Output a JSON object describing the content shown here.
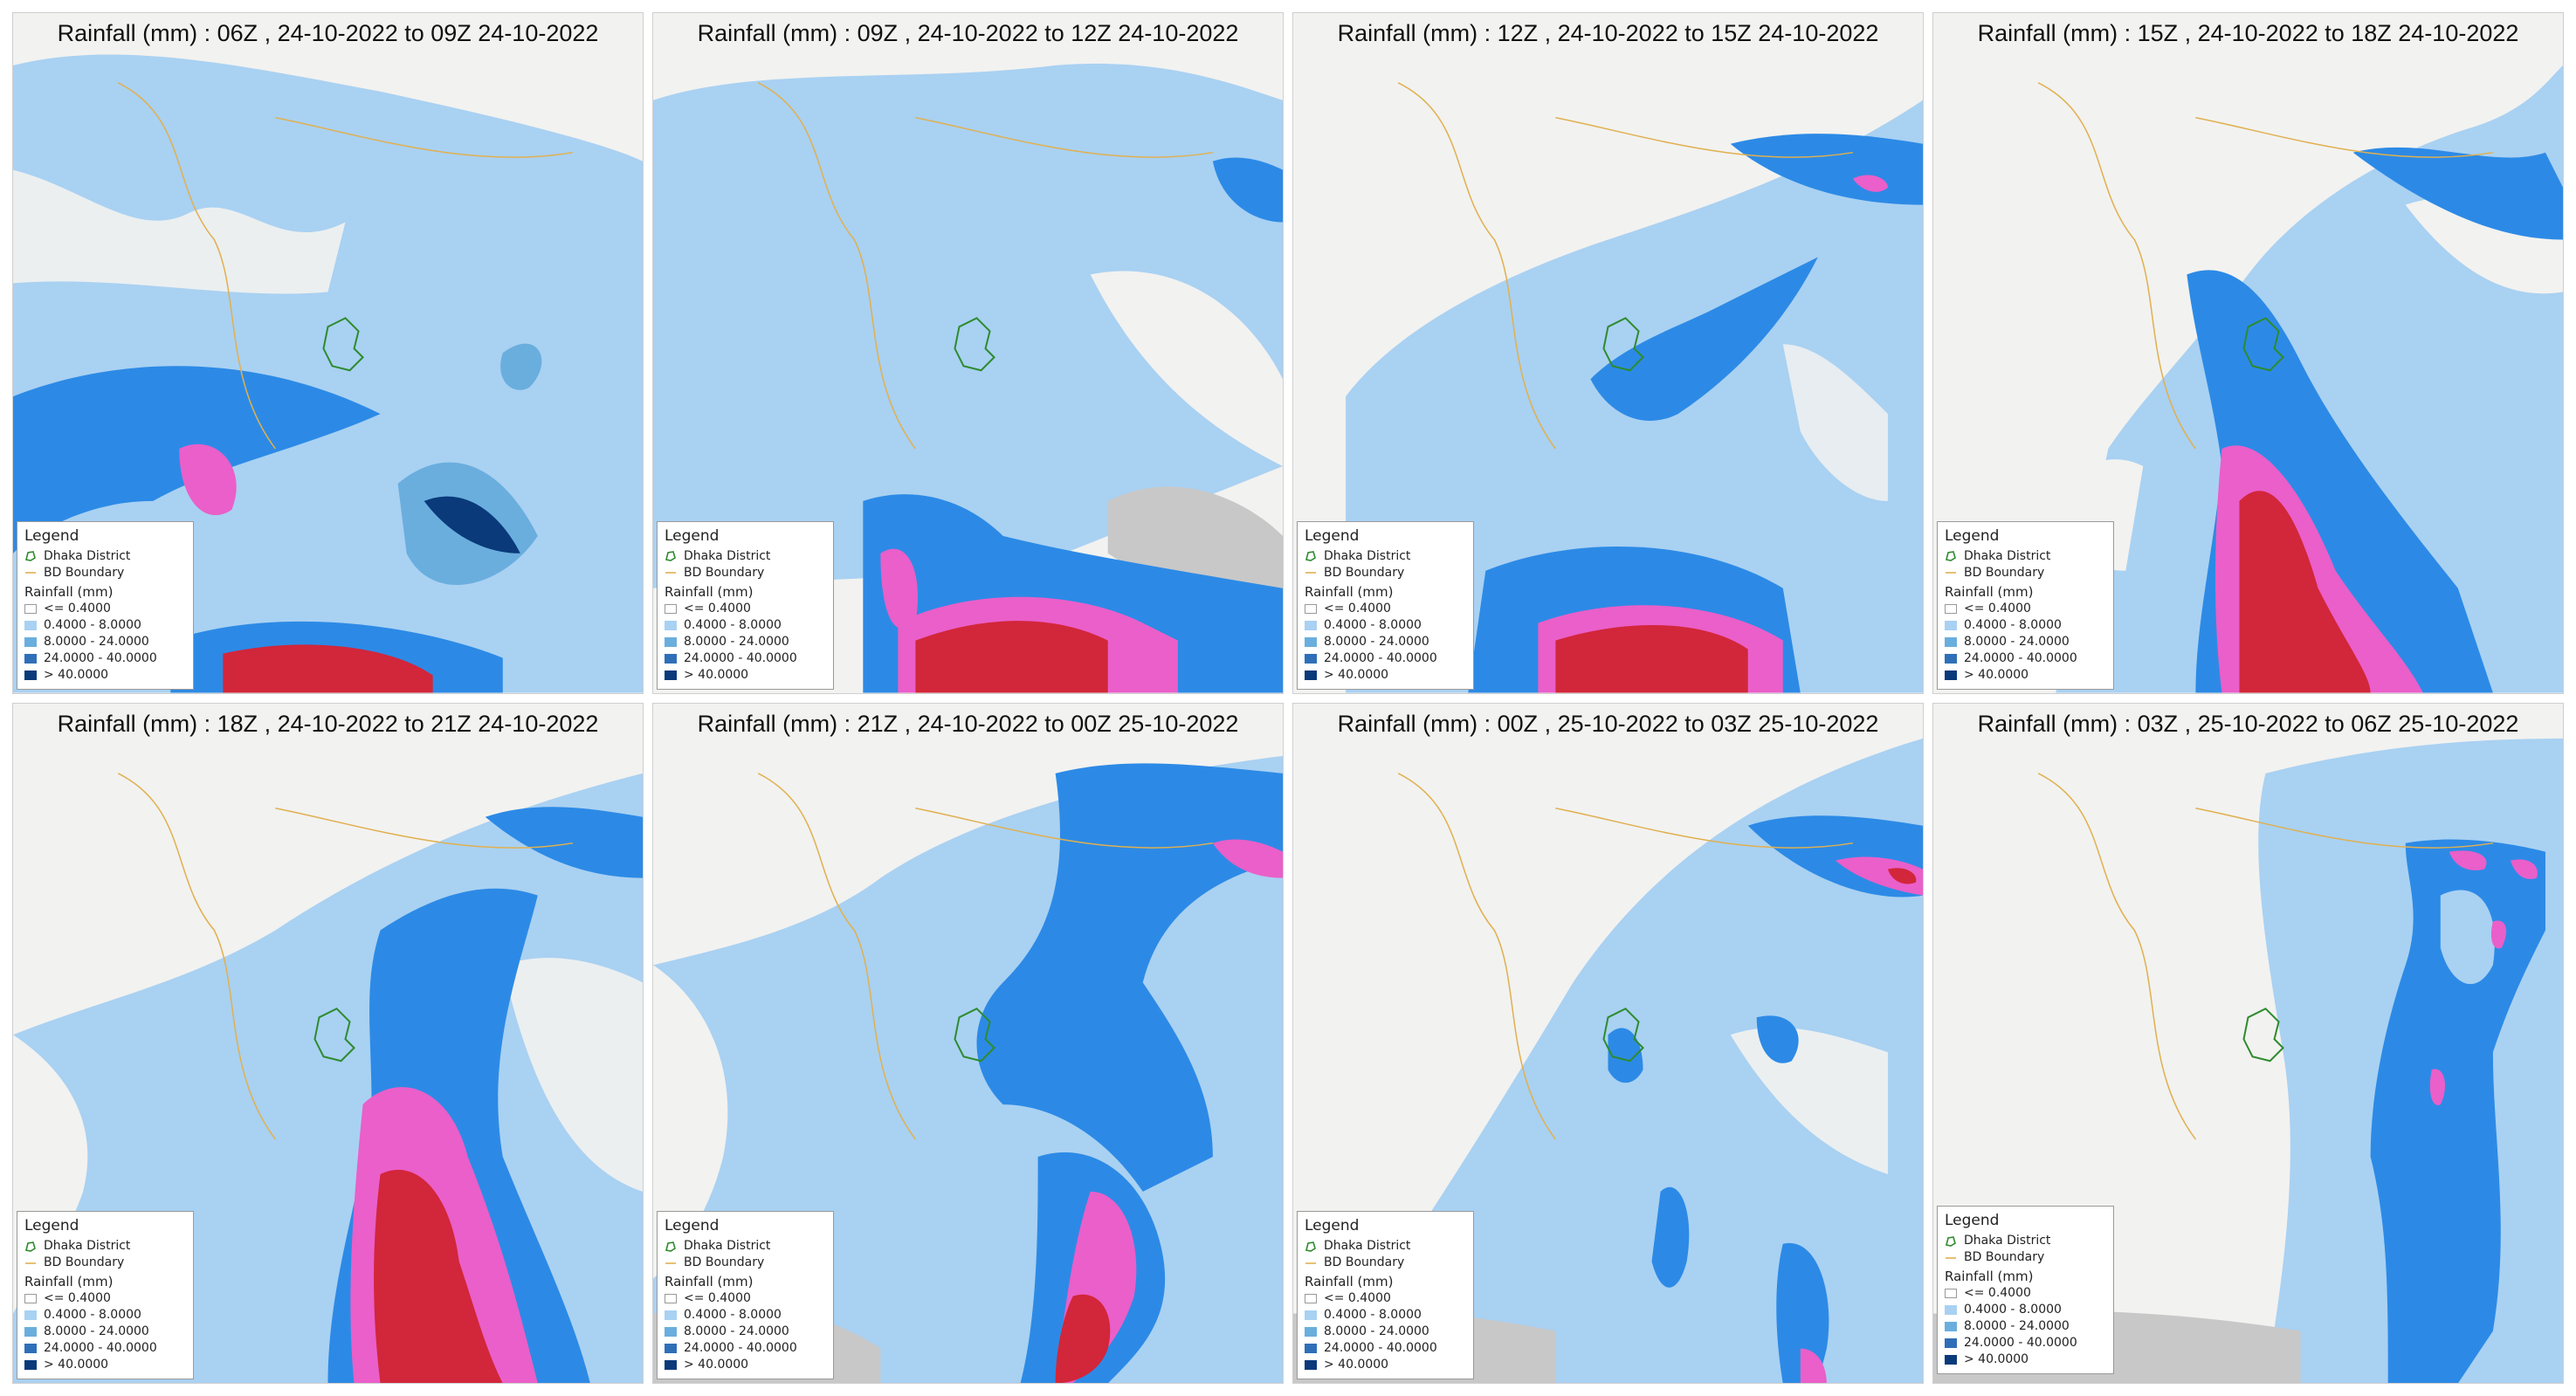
{
  "panels": [
    {
      "title": "Rainfall (mm) : 06Z , 24-10-2022 to 09Z 24-10-2022"
    },
    {
      "title": "Rainfall (mm) : 09Z , 24-10-2022 to 12Z 24-10-2022"
    },
    {
      "title": "Rainfall (mm) : 12Z , 24-10-2022 to 15Z 24-10-2022"
    },
    {
      "title": "Rainfall (mm) : 15Z , 24-10-2022 to 18Z 24-10-2022"
    },
    {
      "title": "Rainfall (mm) : 18Z , 24-10-2022 to 21Z 24-10-2022"
    },
    {
      "title": "Rainfall (mm) : 21Z , 24-10-2022 to 00Z 25-10-2022"
    },
    {
      "title": "Rainfall (mm) : 00Z , 25-10-2022 to 03Z 25-10-2022"
    },
    {
      "title": "Rainfall (mm) : 03Z , 25-10-2022 to 06Z 25-10-2022"
    }
  ],
  "legend": {
    "title": "Legend",
    "layers": [
      {
        "label": "Dhaka District",
        "icon": "polygon-outline-icon",
        "color": "#2e8b2e"
      },
      {
        "label": "BD Boundary",
        "icon": "line-icon",
        "color": "#e0b050"
      }
    ],
    "scale_title": "Rainfall (mm)",
    "classes": [
      {
        "label": "<= 0.4000",
        "color": "#ffffff"
      },
      {
        "label": "0.4000 - 8.0000",
        "color": "#a9d1f2"
      },
      {
        "label": "8.0000 - 24.0000",
        "color": "#6aaede"
      },
      {
        "label": "24.0000 - 40.0000",
        "color": "#2f6fb8"
      },
      {
        "label": "> 40.0000",
        "color": "#0a3a7a"
      }
    ]
  },
  "colors": {
    "light_blue": "#a9d1f2",
    "medium_blue": "#2c8ae6",
    "steel_blue": "#6aaede",
    "dark_blue": "#0a3a7a",
    "magenta": "#ea5fc9",
    "red": "#d2263a",
    "land": "#f2f2f0",
    "sea": "#c8c8c8"
  }
}
